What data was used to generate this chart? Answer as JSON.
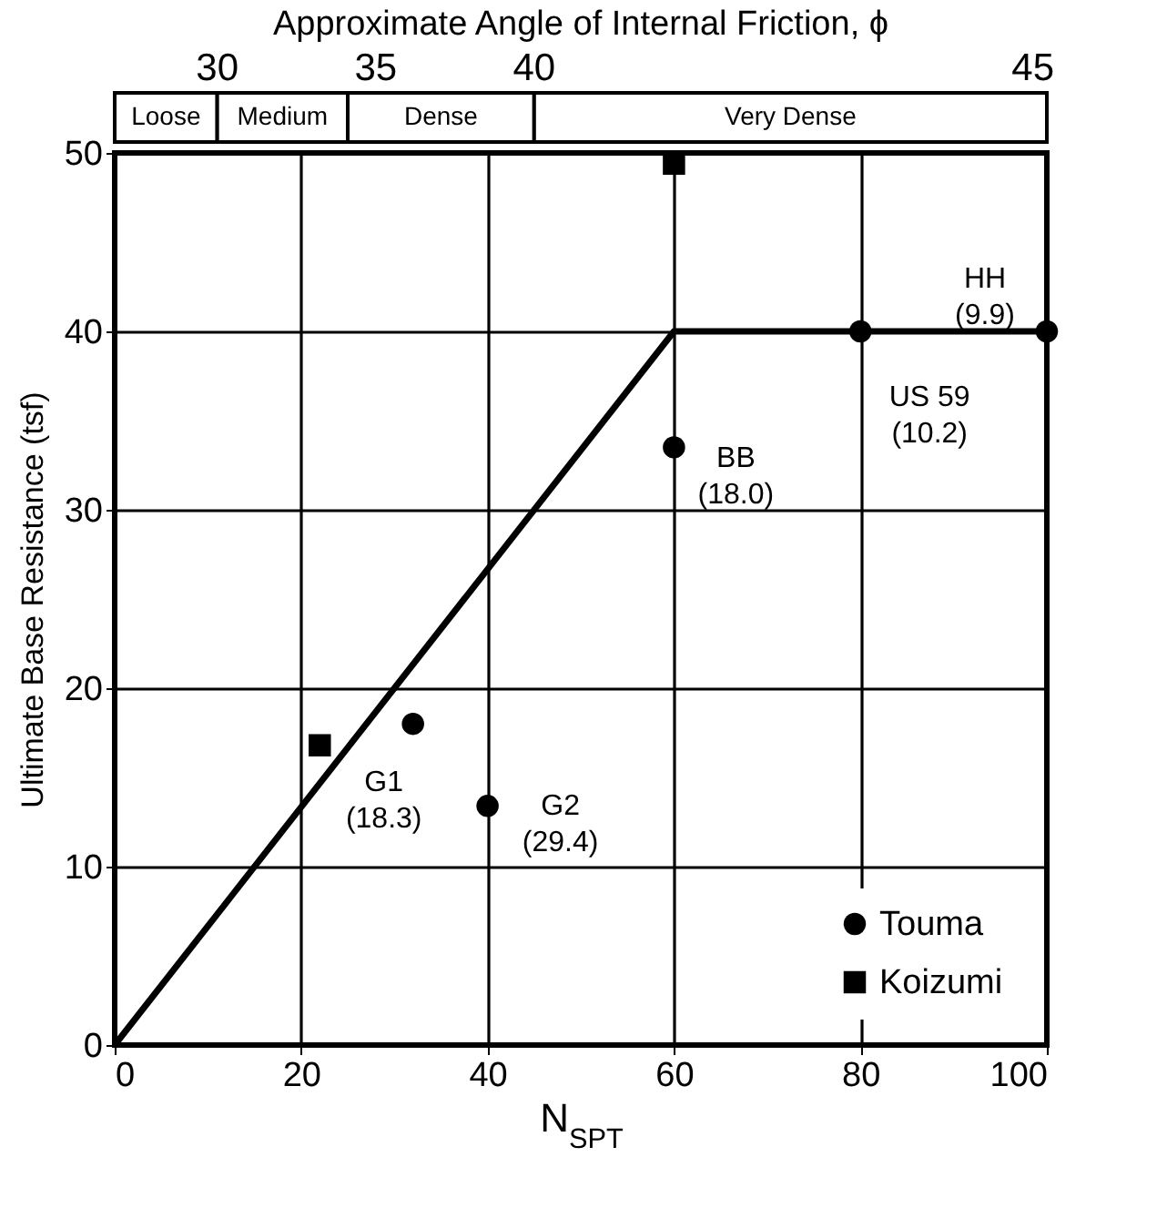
{
  "chart_data": {
    "type": "scatter",
    "xlabel": "N$_{SPT}$",
    "ylabel": "Ultimate Base Resistance (tsf)",
    "x2label": "Approximate Angle of Internal Friction, ϕ",
    "xlim": [
      0,
      100
    ],
    "xticks": [
      0,
      20,
      40,
      60,
      80,
      100
    ],
    "ylim": [
      0,
      50
    ],
    "yticks": [
      0,
      10,
      20,
      30,
      40,
      50
    ],
    "grid": true,
    "legend": "bottom right",
    "line_style": "solid",
    "series": [
      {
        "type": "line",
        "color": "#000000",
        "x": [
          0,
          60,
          100
        ],
        "values": [
          0,
          40,
          40
        ]
      },
      {
        "name": "Touma",
        "color": "#000000",
        "marker": "circle",
        "x": [
          32,
          40,
          60,
          80,
          100
        ],
        "values": [
          18,
          13.4,
          33.5,
          40,
          40
        ]
      },
      {
        "name": "Koizumi",
        "color": "#000000",
        "marker": "square",
        "x": [
          22,
          60
        ],
        "values": [
          16.8,
          49.4
        ]
      }
    ],
    "annotations": [
      {
        "text": "G1\n(18.3)",
        "x": 32,
        "y": 18
      },
      {
        "text": "G2\n(29.4)",
        "x": 40,
        "y": 13.4
      },
      {
        "text": "BB\n(18.0)",
        "x": 60,
        "y": 33.5
      },
      {
        "text": "US 59\n(10.2)",
        "x": 80,
        "y": 40
      },
      {
        "text": "HH\n(9.9)",
        "x": 100,
        "y": 40
      },
      "30",
      "35",
      "40",
      "45",
      "Loose",
      "Medium",
      "Dense",
      "Very Dense"
    ]
  }
}
